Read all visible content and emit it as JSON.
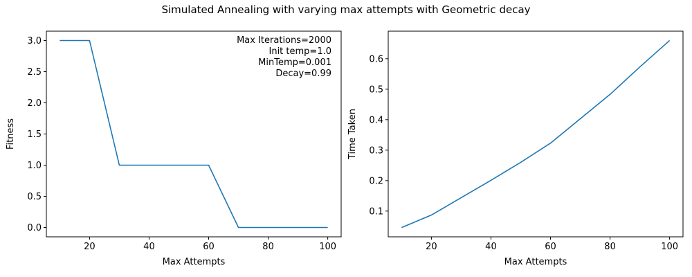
{
  "figure": {
    "suptitle": "Simulated Annealing with varying max attempts with Geometric decay"
  },
  "chart_data": [
    {
      "type": "line",
      "title": "",
      "xlabel": "Max Attempts",
      "ylabel": "Fitness",
      "xlim": [
        5.5,
        104.5
      ],
      "ylim": [
        -0.15,
        3.15
      ],
      "xticks": [
        20,
        40,
        60,
        80,
        100
      ],
      "yticks": [
        0.0,
        0.5,
        1.0,
        1.5,
        2.0,
        2.5,
        3.0
      ],
      "ytick_labels": [
        "0.0",
        "0.5",
        "1.0",
        "1.5",
        "2.0",
        "2.5",
        "3.0"
      ],
      "grid": false,
      "series": [
        {
          "color": "#1f77b4",
          "x": [
            10,
            20,
            30,
            40,
            50,
            60,
            70,
            80,
            90,
            100
          ],
          "y": [
            3.0,
            3.0,
            1.0,
            1.0,
            1.0,
            1.0,
            0.0,
            0.0,
            0.0,
            0.0
          ]
        }
      ],
      "annotations": [
        "Max Iterations=2000",
        "Init temp=1.0",
        "MinTemp=0.001",
        "Decay=0.99"
      ],
      "annotation_position": "top-right"
    },
    {
      "type": "line",
      "title": "",
      "xlabel": "Max Attempts",
      "ylabel": "Time Taken",
      "xlim": [
        5.5,
        104.5
      ],
      "ylim": [
        0.0155,
        0.6905
      ],
      "xticks": [
        20,
        40,
        60,
        80,
        100
      ],
      "yticks": [
        0.1,
        0.2,
        0.3,
        0.4,
        0.5,
        0.6
      ],
      "ytick_labels": [
        "0.1",
        "0.2",
        "0.3",
        "0.4",
        "0.5",
        "0.6"
      ],
      "grid": false,
      "series": [
        {
          "color": "#1f77b4",
          "x": [
            10,
            20,
            30,
            40,
            50,
            60,
            70,
            80,
            90,
            100
          ],
          "y": [
            0.046,
            0.087,
            0.144,
            0.201,
            0.26,
            0.323,
            0.403,
            0.483,
            0.573,
            0.66
          ]
        }
      ]
    }
  ]
}
